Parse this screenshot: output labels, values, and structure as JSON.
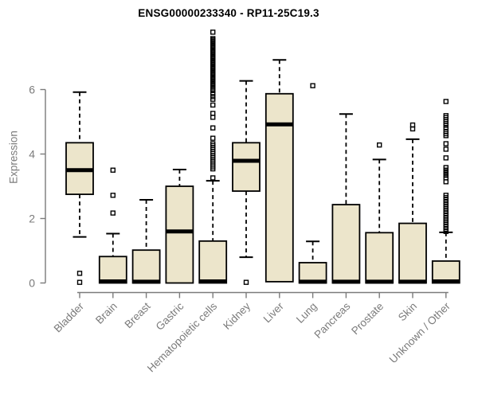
{
  "chart_data": {
    "type": "boxplot",
    "title": "ENSG00000233340 - RP11-25C19.3",
    "xlabel": "",
    "ylabel": "Expression",
    "yticks": [
      0,
      2,
      4,
      6
    ],
    "ylim": [
      0,
      7.9
    ],
    "grid": false,
    "legend": false,
    "categories": [
      "Bladder",
      "Brain",
      "Breast",
      "Gastric",
      "Hematopoietic cells",
      "Kidney",
      "Liver",
      "Lung",
      "Pancreas",
      "Prostate",
      "Skin",
      "Unknown / Other"
    ],
    "series": [
      {
        "name": "Bladder",
        "whisker_low": 1.43,
        "q1": 2.75,
        "median": 3.5,
        "q3": 4.35,
        "whisker_high": 5.92,
        "outliers": [
          0.3,
          0.02
        ]
      },
      {
        "name": "Brain",
        "whisker_low": 0,
        "q1": 0,
        "median": 0.05,
        "q3": 0.82,
        "whisker_high": 1.53,
        "outliers": [
          3.5,
          2.72,
          2.17
        ]
      },
      {
        "name": "Breast",
        "whisker_low": 0,
        "q1": 0,
        "median": 0.04,
        "q3": 1.02,
        "whisker_high": 2.58,
        "outliers": []
      },
      {
        "name": "Gastric",
        "whisker_low": 0,
        "q1": 0,
        "median": 1.6,
        "q3": 3.0,
        "whisker_high": 3.52,
        "outliers": []
      },
      {
        "name": "Hematopoietic cells",
        "whisker_low": 0,
        "q1": 0,
        "median": 0.05,
        "q3": 1.3,
        "whisker_high": 3.17,
        "outliers": [
          7.78,
          7.58,
          7.54,
          7.5,
          7.46,
          7.42,
          7.38,
          7.34,
          7.3,
          7.26,
          7.22,
          7.18,
          7.14,
          7.1,
          7.06,
          7.02,
          6.98,
          6.94,
          6.9,
          6.86,
          6.82,
          6.78,
          6.74,
          6.7,
          6.66,
          6.62,
          6.58,
          6.54,
          6.5,
          6.46,
          6.42,
          6.38,
          6.34,
          6.3,
          6.26,
          6.22,
          6.18,
          6.14,
          6.1,
          6.05,
          5.97,
          5.88,
          5.78,
          5.7,
          5.52,
          5.26,
          5.14,
          4.81,
          4.49,
          4.32,
          4.26,
          4.2,
          4.14,
          4.08,
          4.02,
          3.96,
          3.9,
          3.84,
          3.78,
          3.72,
          3.66,
          3.6,
          3.54,
          3.26
        ]
      },
      {
        "name": "Kidney",
        "whisker_low": 0.8,
        "q1": 2.85,
        "median": 3.79,
        "q3": 4.35,
        "whisker_high": 6.27,
        "outliers": [
          0.02
        ]
      },
      {
        "name": "Liver",
        "whisker_low": 0.04,
        "q1": 0.04,
        "median": 4.92,
        "q3": 5.87,
        "whisker_high": 6.92,
        "outliers": []
      },
      {
        "name": "Lung",
        "whisker_low": 0,
        "q1": 0,
        "median": 0.04,
        "q3": 0.63,
        "whisker_high": 1.29,
        "outliers": [
          6.12
        ]
      },
      {
        "name": "Pancreas",
        "whisker_low": 0,
        "q1": 0,
        "median": 0.04,
        "q3": 2.43,
        "whisker_high": 5.24,
        "outliers": []
      },
      {
        "name": "Prostate",
        "whisker_low": 0,
        "q1": 0,
        "median": 0.04,
        "q3": 1.56,
        "whisker_high": 3.83,
        "outliers": [
          4.28
        ]
      },
      {
        "name": "Skin",
        "whisker_low": 0,
        "q1": 0,
        "median": 0.04,
        "q3": 1.85,
        "whisker_high": 4.46,
        "outliers": [
          4.9,
          4.78
        ]
      },
      {
        "name": "Unknown / Other",
        "whisker_low": 0,
        "q1": 0,
        "median": 0.05,
        "q3": 0.68,
        "whisker_high": 1.57,
        "outliers": [
          5.63,
          5.19,
          5.13,
          5.07,
          5.01,
          4.95,
          4.89,
          4.81,
          4.7,
          4.63,
          4.57,
          4.32,
          4.15,
          3.88,
          3.58,
          3.5,
          3.42,
          3.34,
          3.26,
          3.14,
          2.72,
          2.65,
          2.58,
          2.51,
          2.44,
          2.37,
          2.3,
          2.23,
          2.16,
          2.09,
          2.02,
          1.95,
          1.88,
          1.81,
          1.74,
          1.67,
          1.6
        ]
      }
    ],
    "colors": {
      "box_fill": "#ECE5CB",
      "box_border": "#000000",
      "median": "#000000",
      "whisker": "#000000",
      "outlier": "#000000",
      "axis": "#7b7b7b",
      "tick_label": "#7b7b7b",
      "title": "#000000",
      "background": "#ffffff"
    }
  }
}
